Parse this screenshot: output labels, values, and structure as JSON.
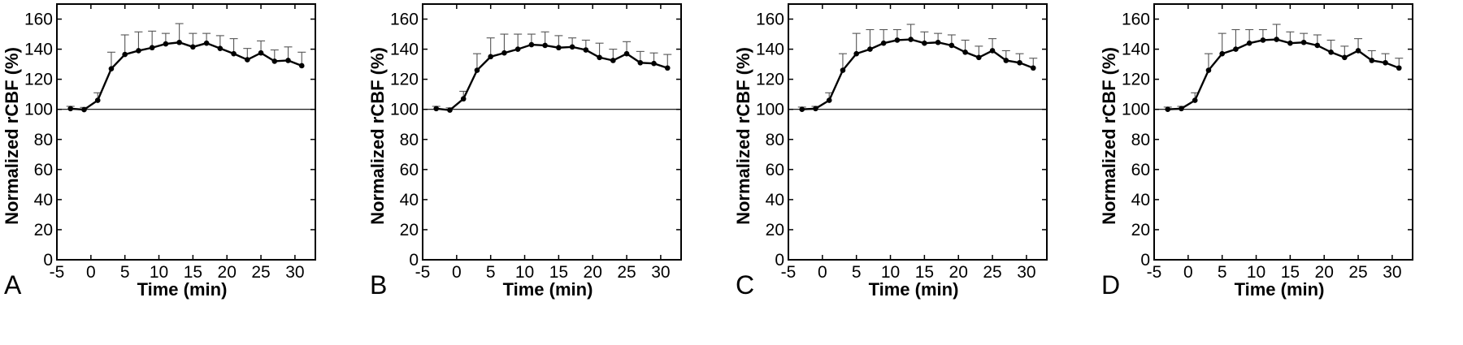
{
  "figure": {
    "panels": [
      "A",
      "B",
      "C",
      "D"
    ]
  },
  "chart_data": [
    {
      "panel_label": "A",
      "type": "line",
      "xlabel": "Time (min)",
      "ylabel": "Normalized rCBF (%)",
      "xlim": [
        -5,
        33
      ],
      "ylim": [
        0,
        170
      ],
      "xticks": [
        -5,
        0,
        5,
        10,
        15,
        20,
        25,
        30
      ],
      "yticks": [
        0,
        20,
        40,
        60,
        80,
        100,
        120,
        140,
        160
      ],
      "baseline": 100,
      "x": [
        -3,
        -1,
        1,
        3,
        5,
        7,
        9,
        11,
        13,
        15,
        17,
        19,
        21,
        23,
        25,
        27,
        29,
        31
      ],
      "values": [
        100.5,
        99.8,
        106,
        127,
        136.5,
        139,
        141,
        143.5,
        144.5,
        141.5,
        144,
        140.5,
        137,
        133,
        137.5,
        132,
        132.5,
        129
      ],
      "errors": [
        1.5,
        1.5,
        5,
        11,
        13,
        12.5,
        11,
        7,
        12.5,
        9,
        6.5,
        8.5,
        10,
        7.5,
        8,
        7.5,
        9,
        9
      ]
    },
    {
      "panel_label": "B",
      "type": "line",
      "xlabel": "Time (min)",
      "ylabel": "Normalized rCBF (%)",
      "xlim": [
        -5,
        33
      ],
      "ylim": [
        0,
        170
      ],
      "xticks": [
        -5,
        0,
        5,
        10,
        15,
        20,
        25,
        30
      ],
      "yticks": [
        0,
        20,
        40,
        60,
        80,
        100,
        120,
        140,
        160
      ],
      "baseline": 100,
      "x": [
        -3,
        -1,
        1,
        3,
        5,
        7,
        9,
        11,
        13,
        15,
        17,
        19,
        21,
        23,
        25,
        27,
        29,
        31
      ],
      "values": [
        100.5,
        99.5,
        107,
        126,
        135,
        137.5,
        140,
        143,
        142.5,
        141,
        141.5,
        139.5,
        134.5,
        132.5,
        137,
        131,
        130.5,
        127.5
      ],
      "errors": [
        1.5,
        1.5,
        5,
        11,
        12.5,
        12.5,
        10,
        7,
        9,
        8,
        6,
        6.5,
        9.5,
        7.5,
        8,
        7.5,
        7,
        9
      ]
    },
    {
      "panel_label": "C",
      "type": "line",
      "xlabel": "Time (min)",
      "ylabel": "Normalized rCBF (%)",
      "xlim": [
        -5,
        33
      ],
      "ylim": [
        0,
        170
      ],
      "xticks": [
        -5,
        0,
        5,
        10,
        15,
        20,
        25,
        30
      ],
      "yticks": [
        0,
        20,
        40,
        60,
        80,
        100,
        120,
        140,
        160
      ],
      "baseline": 100,
      "x": [
        -3,
        -1,
        1,
        3,
        5,
        7,
        9,
        11,
        13,
        15,
        17,
        19,
        21,
        23,
        25,
        27,
        29,
        31
      ],
      "values": [
        100,
        100.5,
        106,
        126,
        137,
        140,
        144,
        146,
        146.5,
        144,
        144.5,
        142.5,
        138,
        134.5,
        139,
        132.5,
        131,
        127.5
      ],
      "errors": [
        1.5,
        1.5,
        5,
        11,
        13.5,
        13,
        9,
        7,
        10,
        7.5,
        6,
        7,
        8,
        7.5,
        8,
        6.5,
        6,
        6.5
      ]
    },
    {
      "panel_label": "D",
      "type": "line",
      "xlabel": "Time (min)",
      "ylabel": "Normalized rCBF (%)",
      "xlim": [
        -5,
        33
      ],
      "ylim": [
        0,
        170
      ],
      "xticks": [
        -5,
        0,
        5,
        10,
        15,
        20,
        25,
        30
      ],
      "yticks": [
        0,
        20,
        40,
        60,
        80,
        100,
        120,
        140,
        160
      ],
      "baseline": 100,
      "x": [
        -3,
        -1,
        1,
        3,
        5,
        7,
        9,
        11,
        13,
        15,
        17,
        19,
        21,
        23,
        25,
        27,
        29,
        31
      ],
      "values": [
        100,
        100.5,
        106,
        126,
        137,
        140,
        144,
        146,
        146.5,
        144,
        144.5,
        142.5,
        138,
        134.5,
        139,
        132.5,
        131,
        127.5
      ],
      "errors": [
        1.5,
        1.5,
        5,
        11,
        13.5,
        13,
        9,
        7,
        10,
        7.5,
        6,
        7,
        8,
        7.5,
        8,
        6.5,
        6,
        6.5
      ]
    }
  ]
}
